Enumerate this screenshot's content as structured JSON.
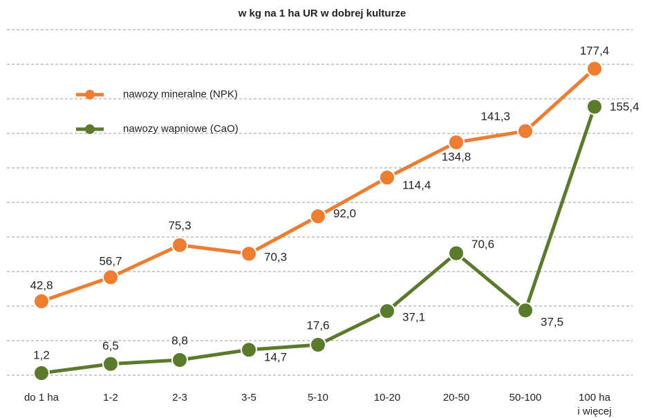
{
  "chart_data": {
    "type": "line",
    "title": "w kg na 1 ha UR w dobrej kulturze",
    "categories": [
      "do 1 ha",
      "1-2",
      "2-3",
      "3-5",
      "5-10",
      "10-20",
      "20-50",
      "50-100",
      "100 ha\ni więcej"
    ],
    "series": [
      {
        "name": "nawozy mineralne (NPK)",
        "color": "#ED7D31",
        "values": [
          42.8,
          56.7,
          75.3,
          70.3,
          92.0,
          114.4,
          134.8,
          141.3,
          177.4
        ],
        "value_labels": [
          "42,8",
          "56,7",
          "75,3",
          "70,3",
          "92,0",
          "114,4",
          "134,8",
          "141,3",
          "177,4"
        ]
      },
      {
        "name": "nawozy wapniowe (CaO)",
        "color": "#5B7A2C",
        "values": [
          1.2,
          6.5,
          8.8,
          14.7,
          17.6,
          37.1,
          70.6,
          37.5,
          155.4
        ],
        "value_labels": [
          "1,2",
          "6,5",
          "8,8",
          "14,7",
          "17,6",
          "37,1",
          "70,6",
          "37,5",
          "155,4"
        ]
      }
    ],
    "ylim": [
      0,
      200
    ],
    "yticks": [
      0,
      20,
      40,
      60,
      80,
      100,
      120,
      140,
      160,
      180,
      200
    ],
    "grid": true
  }
}
